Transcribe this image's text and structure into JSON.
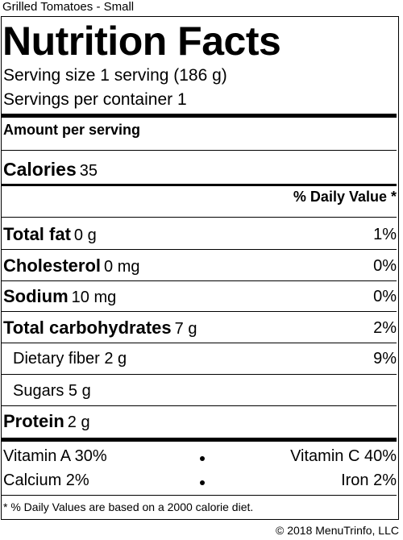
{
  "product_name": "Grilled Tomatoes - Small",
  "title": "Nutrition Facts",
  "serving_size": "Serving size 1 serving (186 g)",
  "servings_per_container": "Servings per container 1",
  "amount_per_serving": "Amount per serving",
  "calories": {
    "label": "Calories",
    "value": "35"
  },
  "daily_value_header": "% Daily Value *",
  "nutrients": {
    "total_fat": {
      "label": "Total fat",
      "amount": "0 g",
      "dv": "1%"
    },
    "cholesterol": {
      "label": "Cholesterol",
      "amount": "0 mg",
      "dv": "0%"
    },
    "sodium": {
      "label": "Sodium",
      "amount": "10 mg",
      "dv": "0%"
    },
    "total_carbohydrates": {
      "label": "Total carbohydrates",
      "amount": "7 g",
      "dv": "2%"
    },
    "dietary_fiber": {
      "label": "Dietary fiber 2 g",
      "dv": "9%"
    },
    "sugars": {
      "label": "Sugars 5 g"
    },
    "protein": {
      "label": "Protein",
      "amount": "2 g"
    }
  },
  "vitamins": {
    "vitamin_a": "Vitamin A 30%",
    "vitamin_c": "Vitamin C 40%",
    "calcium": "Calcium 2%",
    "iron": "Iron 2%"
  },
  "footnote": "* % Daily Values are based on a 2000 calorie diet.",
  "copyright": "© 2018 MenuTrinfo, LLC"
}
